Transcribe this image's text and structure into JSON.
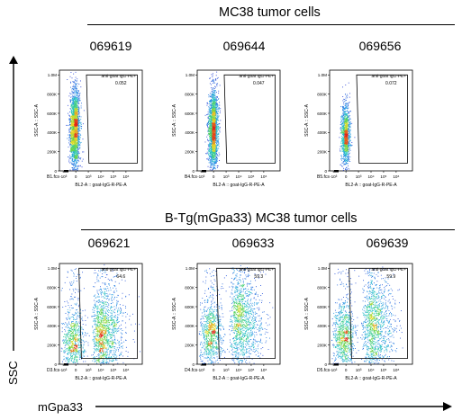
{
  "row1": {
    "title": "MC38 tumor cells",
    "samples": [
      "069619",
      "069644",
      "069656"
    ]
  },
  "row2": {
    "title": "B-Tg(mGpa33) MC38 tumor cells",
    "samples": [
      "069621",
      "069633",
      "069639"
    ]
  },
  "axis": {
    "y_main": "SSC",
    "x_main": "mGpa33"
  },
  "colors": {
    "density_low": "#1f2bd6",
    "density_mid": "#28c3d6",
    "density_high": "#e02a1a",
    "gate": "#000000"
  },
  "chart_data": [
    {
      "type": "scatter",
      "subtype": "flow-cytometry-density-plot",
      "panel_label": "B1.fcs",
      "gate_name": "anti-goat IgG-PE+",
      "gate_percent": "0.052",
      "xlabel": "BL2-A :: goat-IgG-R-PE-A",
      "ylabel": "SSC-A :: SSC-A",
      "y_ticks": [
        "0",
        "200K",
        "400K",
        "600K",
        "800K",
        "1.0M"
      ],
      "x_ticks": [
        "-10³",
        "0",
        "10³",
        "10⁴",
        "10⁵",
        "10⁶"
      ],
      "ylim": [
        0,
        1050000
      ],
      "population": {
        "x_center": -0.1,
        "x_spread": 0.35,
        "y_center": 450000,
        "y_spread": 230000,
        "density": "high",
        "positive_fraction": 0.0005
      }
    },
    {
      "type": "scatter",
      "subtype": "flow-cytometry-density-plot",
      "panel_label": "B4.fcs",
      "gate_name": "anti-goat IgG-PE+",
      "gate_percent": "0.047",
      "xlabel": "BL2-A :: goat-IgG-R-PE-A",
      "ylabel": "SSC-A :: SSC-A",
      "y_ticks": [
        "0",
        "200K",
        "400K",
        "600K",
        "800K",
        "1.0M"
      ],
      "x_ticks": [
        "-10³",
        "0",
        "10³",
        "10⁴",
        "10⁵",
        "10⁶"
      ],
      "ylim": [
        0,
        1050000
      ],
      "population": {
        "x_center": -0.05,
        "x_spread": 0.35,
        "y_center": 430000,
        "y_spread": 230000,
        "density": "high",
        "positive_fraction": 0.0005
      }
    },
    {
      "type": "scatter",
      "subtype": "flow-cytometry-density-plot",
      "panel_label": "B5.fcs",
      "gate_name": "anti-goat IgG-PE+",
      "gate_percent": "0.072",
      "xlabel": "BL2-A :: goat-IgG-R-PE-A",
      "ylabel": "SSC-A :: SSC-A",
      "y_ticks": [
        "0",
        "200K",
        "400K",
        "600K",
        "800K",
        "1.0M"
      ],
      "x_ticks": [
        "-10³",
        "0",
        "10³",
        "10⁴",
        "10⁵",
        "10⁶"
      ],
      "ylim": [
        0,
        1050000
      ],
      "population": {
        "x_center": -0.05,
        "x_spread": 0.32,
        "y_center": 380000,
        "y_spread": 180000,
        "density": "medium",
        "positive_fraction": 0.0007
      }
    },
    {
      "type": "scatter",
      "subtype": "flow-cytometry-density-plot",
      "panel_label": "D3.fcs",
      "gate_name": "anti-goat IgG-PE+",
      "gate_percent": "64.6",
      "xlabel": "BL2-A :: goat-IgG-R-PE-A",
      "ylabel": "SSC-A :: SSC-A",
      "y_ticks": [
        "0",
        "200K",
        "400K",
        "600K",
        "800K",
        "1.0M"
      ],
      "x_ticks": [
        "-10³",
        "0",
        "10³",
        "10⁴",
        "10⁵",
        "10⁶"
      ],
      "ylim": [
        0,
        1050000
      ],
      "population": {
        "x_center": 1.2,
        "x_spread": 1.1,
        "y_center": 300000,
        "y_spread": 220000,
        "density": "high",
        "positive_fraction": 0.646
      }
    },
    {
      "type": "scatter",
      "subtype": "flow-cytometry-density-plot",
      "panel_label": "D4.fcs",
      "gate_name": "anti-goat IgG-PE+",
      "gate_percent": "59.3",
      "xlabel": "BL2-A :: goat-IgG-R-PE-A",
      "ylabel": "SSC-A :: SSC-A",
      "y_ticks": [
        "0",
        "200K",
        "400K",
        "600K",
        "800K",
        "1.0M"
      ],
      "x_ticks": [
        "-10³",
        "0",
        "10³",
        "10⁴",
        "10⁵",
        "10⁶"
      ],
      "ylim": [
        0,
        1050000
      ],
      "population": {
        "x_center": 1.1,
        "x_spread": 1.2,
        "y_center": 400000,
        "y_spread": 260000,
        "density": "high",
        "positive_fraction": 0.593
      }
    },
    {
      "type": "scatter",
      "subtype": "flow-cytometry-density-plot",
      "panel_label": "D5.fcs",
      "gate_name": "anti-goat IgG-PE+",
      "gate_percent": "59.9",
      "xlabel": "BL2-A :: goat-IgG-R-PE-A",
      "ylabel": "SSC-A :: SSC-A",
      "y_ticks": [
        "0",
        "200K",
        "400K",
        "600K",
        "800K",
        "1.0M"
      ],
      "x_ticks": [
        "-10³",
        "0",
        "10³",
        "10⁴",
        "10⁵",
        "10⁶"
      ],
      "ylim": [
        0,
        1050000
      ],
      "population": {
        "x_center": 1.1,
        "x_spread": 1.2,
        "y_center": 380000,
        "y_spread": 260000,
        "density": "high",
        "positive_fraction": 0.599
      }
    }
  ]
}
